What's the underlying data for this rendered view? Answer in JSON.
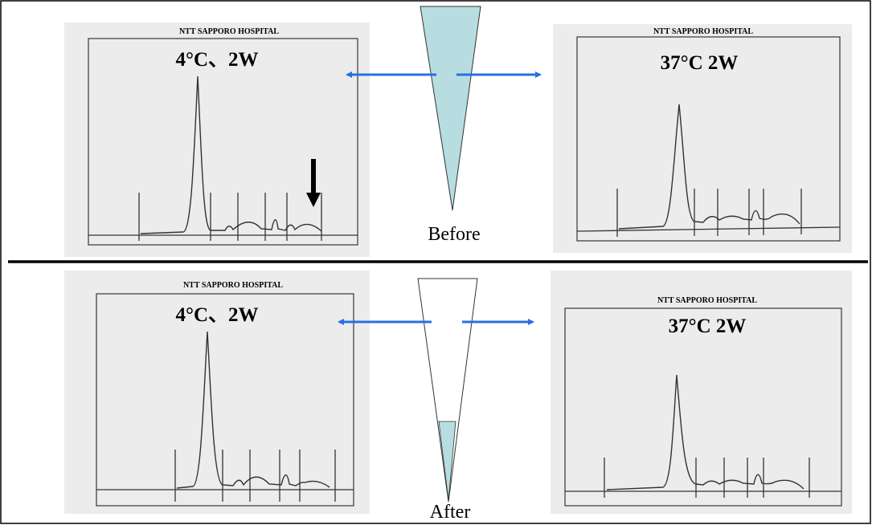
{
  "before": {
    "left": {
      "header": "NTT SAPPORO HOSPITAL",
      "label": "4°C、2W"
    },
    "right": {
      "header": "NTT SAPPORO HOSPITAL",
      "label": "37°C   2W"
    },
    "caption": "Before"
  },
  "after": {
    "left": {
      "header": "NTT SAPPORO HOSPITAL",
      "label": "4°C、2W"
    },
    "right": {
      "header": "NTT SAPPORO HOSPITAL",
      "label": "37°C   2W"
    },
    "caption": "After"
  }
}
